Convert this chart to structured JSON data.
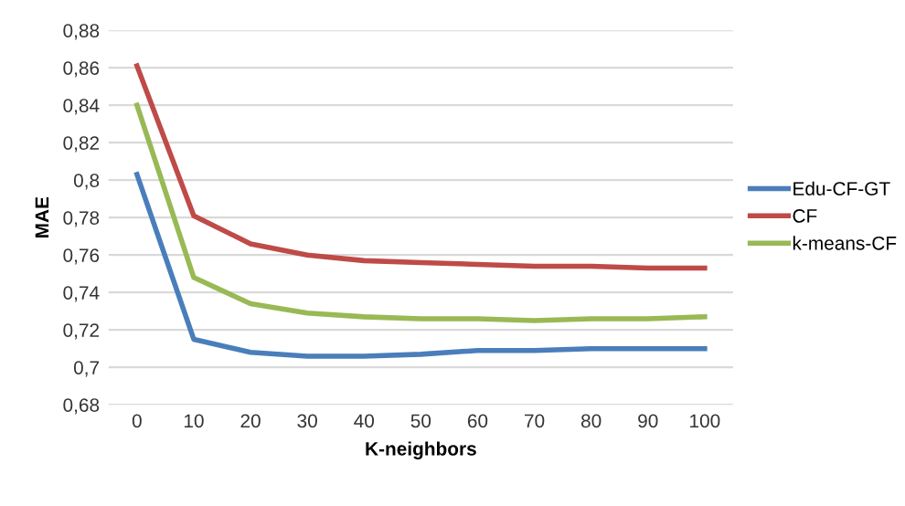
{
  "chart_data": {
    "type": "line",
    "xlabel": "K-neighbors",
    "ylabel": "MAE",
    "categories": [
      "0",
      "10",
      "20",
      "30",
      "40",
      "50",
      "60",
      "70",
      "80",
      "90",
      "100"
    ],
    "series": [
      {
        "name": "Edu-CF-GT",
        "color": "#4a7ebb",
        "values": [
          0.803,
          0.715,
          0.708,
          0.706,
          0.706,
          0.707,
          0.709,
          0.709,
          0.71,
          0.71,
          0.71
        ]
      },
      {
        "name": "CF",
        "color": "#be4b48",
        "values": [
          0.861,
          0.781,
          0.766,
          0.76,
          0.757,
          0.756,
          0.755,
          0.754,
          0.754,
          0.753,
          0.753
        ]
      },
      {
        "name": "k-means-CF",
        "color": "#98b954",
        "values": [
          0.84,
          0.748,
          0.734,
          0.729,
          0.727,
          0.726,
          0.726,
          0.725,
          0.726,
          0.726,
          0.727
        ]
      }
    ],
    "ylim": [
      0.68,
      0.88
    ],
    "yticks": [
      {
        "value": 0.68,
        "label": "0,68"
      },
      {
        "value": 0.7,
        "label": "0,7"
      },
      {
        "value": 0.72,
        "label": "0,72"
      },
      {
        "value": 0.74,
        "label": "0,74"
      },
      {
        "value": 0.76,
        "label": "0,76"
      },
      {
        "value": 0.78,
        "label": "0,78"
      },
      {
        "value": 0.8,
        "label": "0,8"
      },
      {
        "value": 0.82,
        "label": "0,82"
      },
      {
        "value": 0.84,
        "label": "0,84"
      },
      {
        "value": 0.86,
        "label": "0,86"
      },
      {
        "value": 0.88,
        "label": "0,88"
      }
    ],
    "grid": "y",
    "legend": "right",
    "marker": "none",
    "line_style": "solid"
  }
}
